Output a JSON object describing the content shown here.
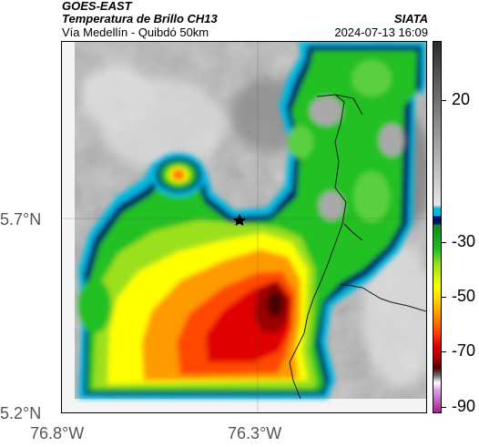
{
  "header": {
    "satellite": "GOES-EAST",
    "product": "Temperatura de Brillo CH13",
    "organization": "SIATA",
    "region": "Vía Medellín - Quibdó 50km",
    "datetime": "2024-07-13 16:09"
  },
  "axes": {
    "lat_labels": [
      "5.7°N",
      "5.2°N"
    ],
    "lon_labels": [
      "76.8°W",
      "76.3°W"
    ]
  },
  "colorbar": {
    "labels": [
      "20",
      "-30",
      "-50",
      "-70",
      "-90"
    ]
  },
  "colors": {
    "deep_cold": "#4a0000",
    "red": "#e00000",
    "orange": "#ff8c00",
    "yellow": "#ffff00",
    "green": "#22c022",
    "navy": "#001060",
    "cyan": "#00b8e0",
    "magenta": "#a02090"
  },
  "map": {
    "marker_icon": "star-icon"
  }
}
